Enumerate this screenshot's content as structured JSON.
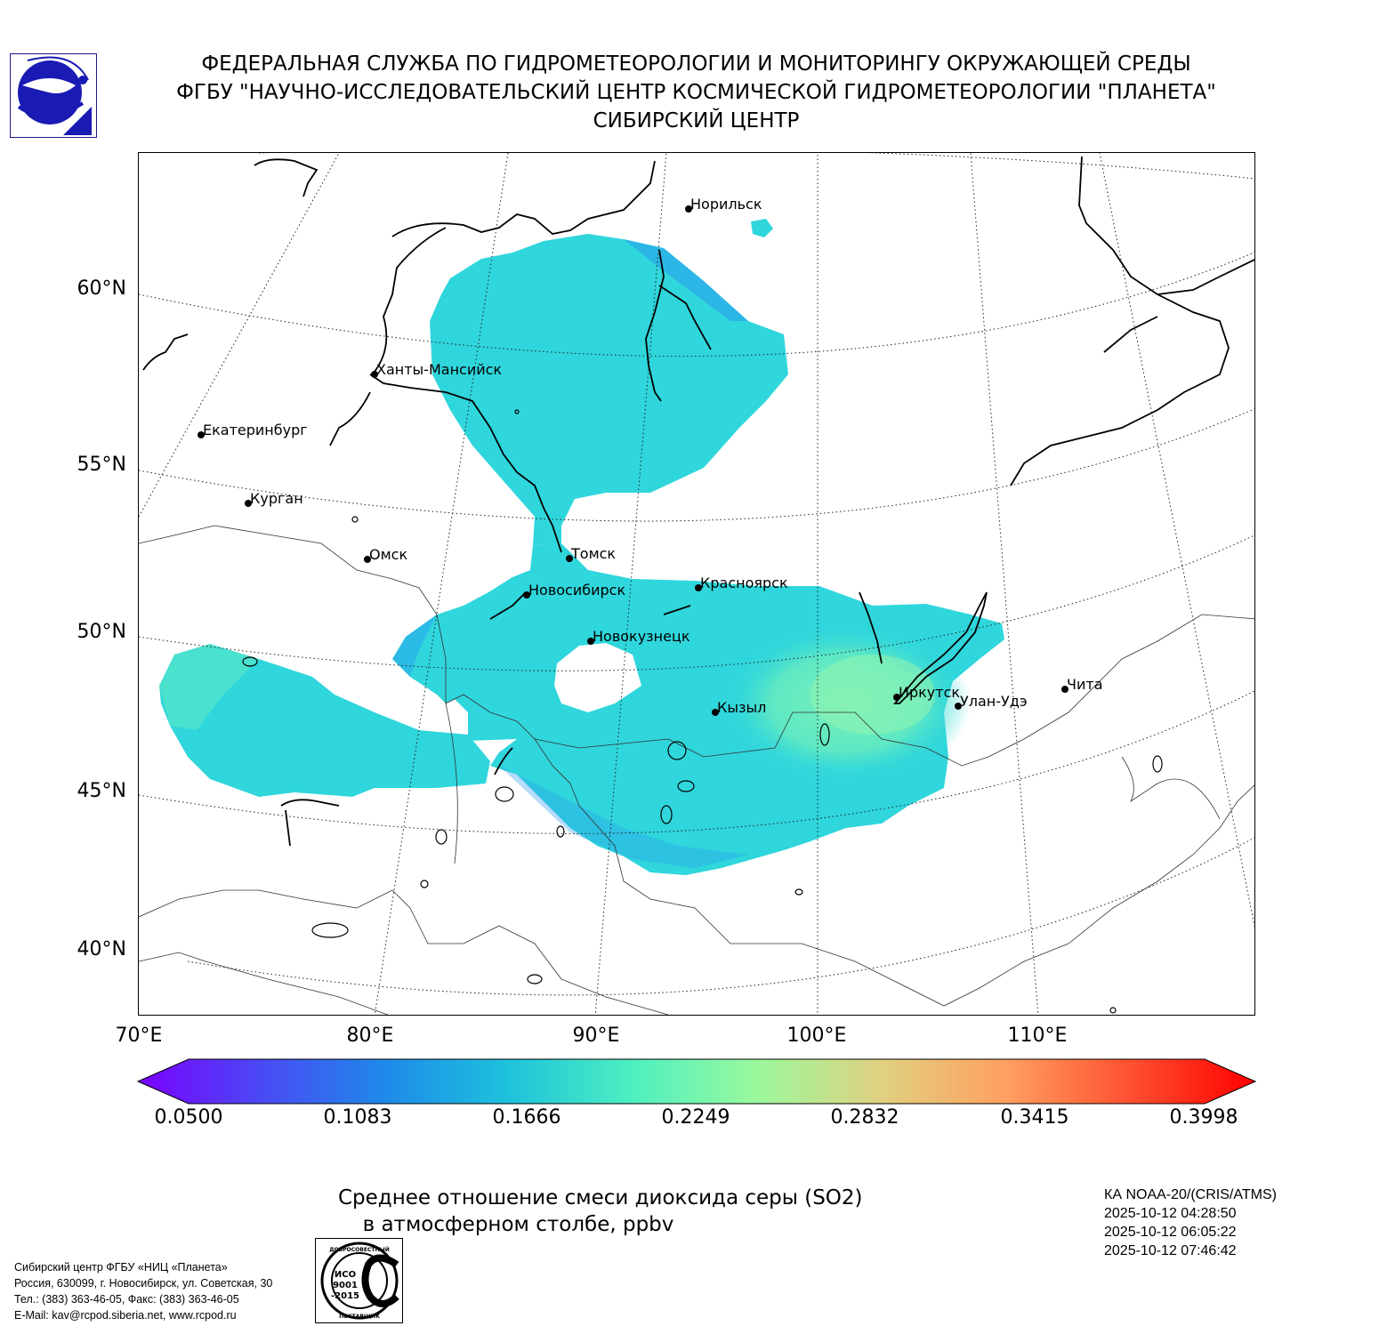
{
  "header": {
    "line1": "ФЕДЕРАЛЬНАЯ СЛУЖБА ПО ГИДРОМЕТЕОРОЛОГИИ И МОНИТОРИНГУ ОКРУЖАЮЩЕЙ СРЕДЫ",
    "line2": "ФГБУ \"НАУЧНО-ИССЛЕДОВАТЕЛЬСКИЙ ЦЕНТР КОСМИЧЕСКОЙ ГИДРОМЕТЕОРОЛОГИИ \"ПЛАНЕТА\"",
    "line3": "СИБИРСКИЙ ЦЕНТР"
  },
  "map": {
    "lat_labels": [
      "60°N",
      "55°N",
      "50°N",
      "45°N",
      "40°N"
    ],
    "lon_labels": [
      "70°E",
      "80°E",
      "90°E",
      "100°E",
      "110°E"
    ],
    "cities": [
      {
        "name": "Норильск"
      },
      {
        "name": "Ханты-Мансийск"
      },
      {
        "name": "Екатеринбург"
      },
      {
        "name": "Курган"
      },
      {
        "name": "Омск"
      },
      {
        "name": "Томск"
      },
      {
        "name": "Новосибирск"
      },
      {
        "name": "Красноярск"
      },
      {
        "name": "Новокузнецк"
      },
      {
        "name": "Кызыл"
      },
      {
        "name": "Иркутск"
      },
      {
        "name": "Улан-Удэ"
      },
      {
        "name": "Чита"
      }
    ],
    "colors": {
      "field_main": "#2fd6dc",
      "field_enhanced": "#5ee8c4",
      "field_low": "#2a9cee",
      "coast": "#000000",
      "border": "#333333"
    }
  },
  "colorbar": {
    "ticks": [
      "0.0500",
      "0.1083",
      "0.1666",
      "0.2249",
      "0.2832",
      "0.3415",
      "0.3998"
    ],
    "colors": [
      "#7b00ff",
      "#4a4af5",
      "#1e8ae9",
      "#1ec3dc",
      "#4ef0c0",
      "#9cf89c",
      "#e0d080",
      "#ffa060",
      "#ff5030",
      "#ff0000"
    ]
  },
  "caption": {
    "line1": "Среднее отношение смеси диоксида серы (SO2)",
    "line2": "в атмосферном столбе, ppbv"
  },
  "satellite": {
    "name": "КА NOAA-20/(CRIS/ATMS)",
    "times": [
      "2025-10-12 04:28:50",
      "2025-10-12 06:05:22",
      "2025-10-12 07:46:42"
    ]
  },
  "footer": {
    "line1": "Сибирский центр ФГБУ «НИЦ «Планета»",
    "line2": "Россия, 630099, г. Новосибирск, ул. Советская, 30",
    "line3": "Тел.: (383) 363-46-05, Факс: (383) 363-46-05",
    "line4": "E-Mail: kav@rcpod.siberia.net, www.rcpod.ru"
  },
  "iso_badge": {
    "top_text": "ДОБРОСОВЕСТНЫЙ",
    "center_line1": "ИСО",
    "center_line2": "9001",
    "center_line3": "-2015",
    "bottom_text": "ПОСТАВЩИК"
  }
}
